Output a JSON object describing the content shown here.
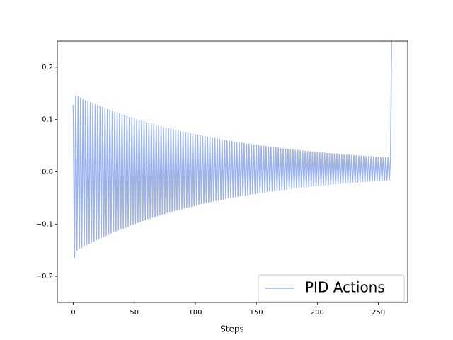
{
  "chart_data": {
    "type": "line",
    "x_label": "Steps",
    "x": [
      0,
      1,
      2,
      3,
      4,
      5,
      6,
      7,
      8,
      9,
      10,
      11,
      12,
      13,
      14,
      15,
      16,
      17,
      18,
      19,
      20,
      21,
      22,
      23,
      24,
      25,
      26,
      27,
      28,
      29,
      30,
      31,
      32,
      33,
      34,
      35,
      36,
      37,
      38,
      39,
      40,
      41,
      42,
      43,
      44,
      45,
      46,
      47,
      48,
      49,
      50,
      51,
      52,
      53,
      54,
      55,
      56,
      57,
      58,
      59,
      60,
      61,
      62,
      63,
      64,
      65,
      66,
      67,
      68,
      69,
      70,
      71,
      72,
      73,
      74,
      75,
      76,
      77,
      78,
      79,
      80,
      81,
      82,
      83,
      84,
      85,
      86,
      87,
      88,
      89,
      90,
      91,
      92,
      93,
      94,
      95,
      96,
      97,
      98,
      99,
      100,
      101,
      102,
      103,
      104,
      105,
      106,
      107,
      108,
      109,
      110,
      111,
      112,
      113,
      114,
      115,
      116,
      117,
      118,
      119,
      120,
      121,
      122,
      123,
      124,
      125,
      126,
      127,
      128,
      129,
      130,
      131,
      132,
      133,
      134,
      135,
      136,
      137,
      138,
      139,
      140,
      141,
      142,
      143,
      144,
      145,
      146,
      147,
      148,
      149,
      150,
      151,
      152,
      153,
      154,
      155,
      156,
      157,
      158,
      159,
      160,
      161,
      162,
      163,
      164,
      165,
      166,
      167,
      168,
      169,
      170,
      171,
      172,
      173,
      174,
      175,
      176,
      177,
      178,
      179,
      180,
      181,
      182,
      183,
      184,
      185,
      186,
      187,
      188,
      189,
      190,
      191,
      192,
      193,
      194,
      195,
      196,
      197,
      198,
      199,
      200,
      201,
      202,
      203,
      204,
      205,
      206,
      207,
      208,
      209,
      210,
      211,
      212,
      213,
      214,
      215,
      216,
      217,
      218,
      219,
      220,
      221,
      222,
      223,
      224,
      225,
      226,
      227,
      228,
      229,
      230,
      231,
      232,
      233,
      234,
      235,
      236,
      237,
      238,
      239,
      240,
      241,
      242,
      243,
      244,
      245,
      246,
      247,
      248,
      249,
      250,
      251,
      252,
      253,
      254,
      255,
      256,
      257,
      258,
      259,
      260,
      261
    ],
    "series": [
      {
        "name": "PID Actions",
        "color": "#9db3ec",
        "values": [
          0.128,
          -0.165,
          0.146,
          -0.151,
          0.144,
          -0.148,
          0.142,
          -0.146,
          0.139,
          -0.143,
          0.137,
          -0.141,
          0.135,
          -0.138,
          0.133,
          -0.136,
          0.131,
          -0.134,
          0.129,
          -0.131,
          0.128,
          -0.129,
          0.126,
          -0.127,
          0.124,
          -0.125,
          0.122,
          -0.123,
          0.12,
          -0.121,
          0.119,
          -0.118,
          0.117,
          -0.116,
          0.115,
          -0.114,
          0.113,
          -0.112,
          0.112,
          -0.11,
          0.11,
          -0.109,
          0.109,
          -0.107,
          0.107,
          -0.105,
          0.105,
          -0.103,
          0.104,
          -0.101,
          0.102,
          -0.1,
          0.101,
          -0.098,
          0.1,
          -0.096,
          0.098,
          -0.094,
          0.097,
          -0.093,
          0.095,
          -0.091,
          0.094,
          -0.09,
          0.093,
          -0.088,
          0.091,
          -0.087,
          0.09,
          -0.085,
          0.089,
          -0.084,
          0.088,
          -0.082,
          0.086,
          -0.081,
          0.085,
          -0.079,
          0.084,
          -0.078,
          0.083,
          -0.077,
          0.082,
          -0.075,
          0.08,
          -0.074,
          0.079,
          -0.073,
          0.078,
          -0.072,
          0.077,
          -0.07,
          0.076,
          -0.069,
          0.075,
          -0.068,
          0.074,
          -0.067,
          0.073,
          -0.066,
          0.072,
          -0.064,
          0.071,
          -0.063,
          0.07,
          -0.062,
          0.069,
          -0.061,
          0.068,
          -0.06,
          0.067,
          -0.059,
          0.066,
          -0.058,
          0.065,
          -0.057,
          0.065,
          -0.056,
          0.064,
          -0.055,
          0.063,
          -0.054,
          0.062,
          -0.053,
          0.061,
          -0.052,
          0.06,
          -0.051,
          0.06,
          -0.051,
          0.059,
          -0.05,
          0.058,
          -0.049,
          0.057,
          -0.048,
          0.056,
          -0.047,
          0.056,
          -0.046,
          0.055,
          -0.046,
          0.054,
          -0.045,
          0.054,
          -0.044,
          0.053,
          -0.043,
          0.052,
          -0.043,
          0.052,
          -0.042,
          0.051,
          -0.041,
          0.05,
          -0.04,
          0.05,
          -0.04,
          0.049,
          -0.039,
          0.048,
          -0.038,
          0.048,
          -0.038,
          0.047,
          -0.037,
          0.047,
          -0.036,
          0.046,
          -0.036,
          0.045,
          -0.035,
          0.045,
          -0.035,
          0.044,
          -0.034,
          0.044,
          -0.033,
          0.043,
          -0.033,
          0.043,
          -0.032,
          0.042,
          -0.032,
          0.042,
          -0.031,
          0.041,
          -0.031,
          0.041,
          -0.03,
          0.04,
          -0.03,
          0.04,
          -0.029,
          0.039,
          -0.029,
          0.039,
          -0.028,
          0.038,
          -0.028,
          0.038,
          -0.027,
          0.037,
          -0.027,
          0.037,
          -0.026,
          0.037,
          -0.026,
          0.036,
          -0.025,
          0.036,
          -0.025,
          0.035,
          -0.024,
          0.035,
          -0.024,
          0.035,
          -0.024,
          0.034,
          -0.023,
          0.034,
          -0.023,
          0.033,
          -0.022,
          0.033,
          -0.022,
          0.033,
          -0.022,
          0.032,
          -0.021,
          0.032,
          -0.021,
          0.032,
          -0.021,
          0.031,
          -0.02,
          0.031,
          -0.02,
          0.031,
          -0.02,
          0.03,
          -0.019,
          0.03,
          -0.019,
          0.03,
          -0.019,
          0.029,
          -0.018,
          0.029,
          -0.018,
          0.029,
          -0.018,
          0.028,
          -0.017,
          0.028,
          -0.017,
          0.028,
          -0.017,
          0.028,
          -0.016,
          0.027,
          0.3
        ]
      }
    ],
    "xlim": [
      -13.05,
      274.05
    ],
    "xticks": [
      0,
      50,
      100,
      150,
      200,
      250
    ],
    "ylim": [
      -0.25,
      0.25
    ],
    "yticks": [
      {
        "value": -0.2,
        "label": "−0.2"
      },
      {
        "value": -0.1,
        "label": "−0.1"
      },
      {
        "value": 0,
        "label": "0.0"
      },
      0.1,
      0.2
    ],
    "legend": "lower right",
    "grid": false
  }
}
